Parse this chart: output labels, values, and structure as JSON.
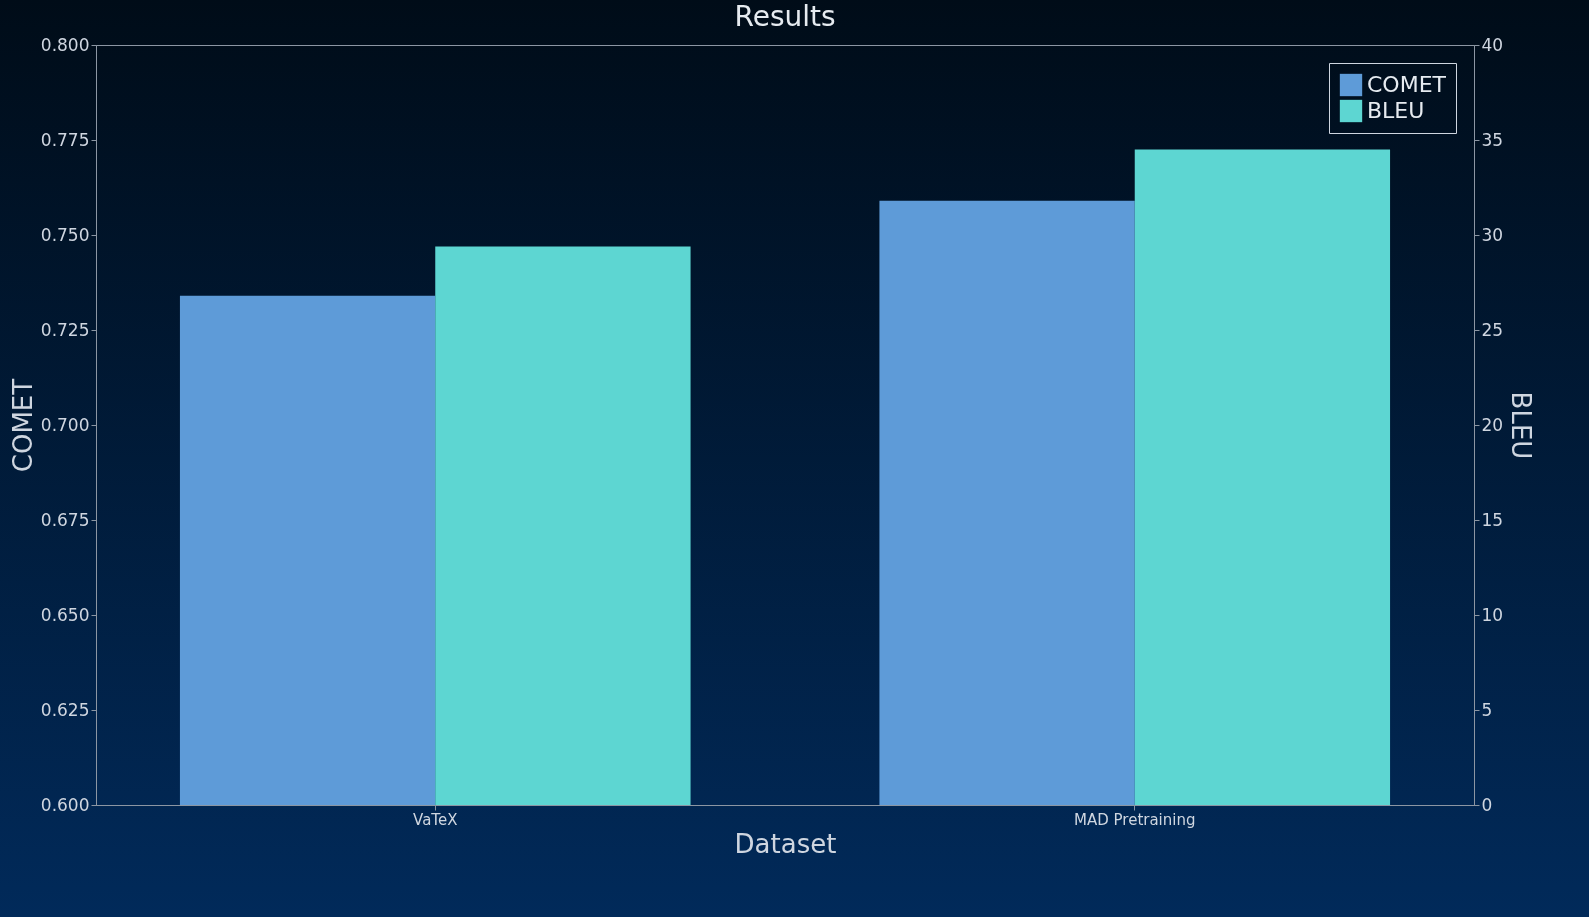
{
  "chart_data": {
    "type": "bar",
    "title": "Results",
    "xlabel": "Dataset",
    "ylabel": "COMET",
    "y2label": "BLEU",
    "categories": [
      "VaTeX",
      "MAD Pretraining"
    ],
    "series": [
      {
        "name": "COMET",
        "color": "#5e9bd8",
        "values": [
          0.734,
          0.759
        ]
      },
      {
        "name": "BLEU",
        "color": "#5dd6d2",
        "values": [
          29.4,
          34.5
        ],
        "axis": "y2"
      }
    ],
    "ylim": [
      0.6,
      0.8
    ],
    "yticks": [
      {
        "value": 0.6,
        "label": "0.600"
      },
      {
        "value": 0.625,
        "label": "0.625"
      },
      {
        "value": 0.65,
        "label": "0.650"
      },
      {
        "value": 0.675,
        "label": "0.675"
      },
      {
        "value": 0.7,
        "label": "0.700"
      },
      {
        "value": 0.725,
        "label": "0.725"
      },
      {
        "value": 0.75,
        "label": "0.750"
      },
      {
        "value": 0.775,
        "label": "0.775"
      },
      {
        "value": 0.8,
        "label": "0.800"
      }
    ],
    "y2lim": [
      0,
      40
    ],
    "y2ticks": [
      0,
      5,
      10,
      15,
      20,
      25,
      30,
      35,
      40
    ],
    "legend": "top right"
  }
}
